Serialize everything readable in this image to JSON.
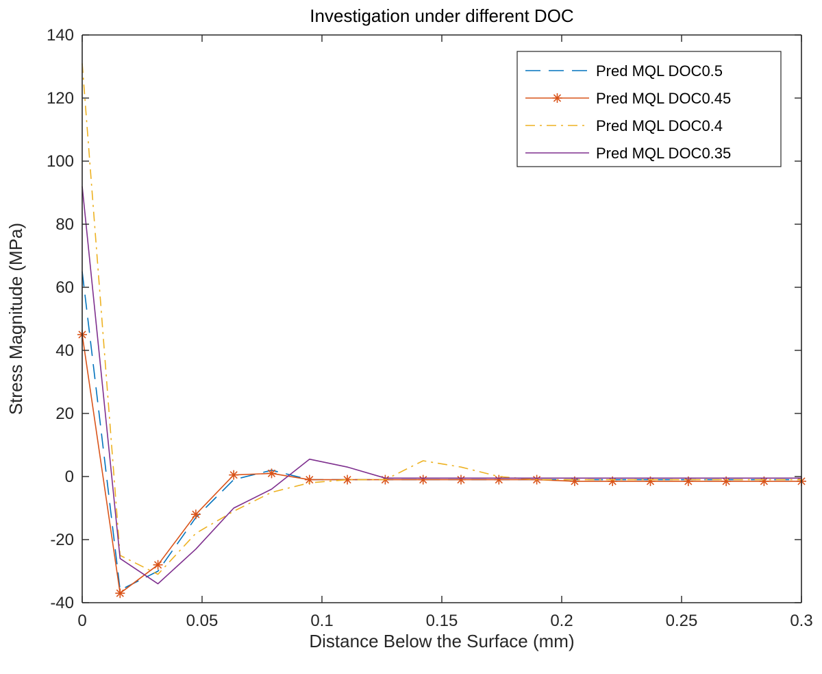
{
  "chart_data": {
    "type": "line",
    "title": "Investigation under different DOC",
    "xlabel": "Distance Below the Surface (mm)",
    "ylabel": "Stress Magnitude (MPa)",
    "xlim": [
      0,
      0.3
    ],
    "ylim": [
      -40,
      140
    ],
    "xticks": [
      0,
      0.05,
      0.1,
      0.15,
      0.2,
      0.25,
      0.3
    ],
    "xtick_labels": [
      "0",
      "0.05",
      "0.1",
      "0.15",
      "0.2",
      "0.25",
      "0.3"
    ],
    "yticks": [
      -40,
      -20,
      0,
      20,
      40,
      60,
      80,
      100,
      120,
      140
    ],
    "ytick_labels": [
      "-40",
      "-20",
      "0",
      "20",
      "40",
      "60",
      "80",
      "100",
      "120",
      "140"
    ],
    "grid": false,
    "legend": "top-right",
    "x": [
      0,
      0.0158,
      0.0316,
      0.0474,
      0.0632,
      0.079,
      0.0948,
      0.1106,
      0.1264,
      0.1422,
      0.158,
      0.1738,
      0.1896,
      0.2054,
      0.2212,
      0.237,
      0.2528,
      0.2686,
      0.2844,
      0.3
    ],
    "series": [
      {
        "name": "Pred MQL DOC0.5",
        "color": "#0072bd",
        "style": "dashed",
        "values": [
          65,
          -36,
          -30,
          -13,
          -1,
          2,
          -1,
          -1,
          -1,
          -1,
          -1,
          -1,
          -1,
          -1,
          -1,
          -1,
          -1,
          -1,
          -1,
          -1
        ]
      },
      {
        "name": "Pred MQL DOC0.45",
        "color": "#d95319",
        "style": "solid-star",
        "values": [
          45,
          -37,
          -28,
          -12,
          0.5,
          1,
          -1,
          -1,
          -1,
          -1,
          -1,
          -1,
          -1,
          -1.5,
          -1.5,
          -1.5,
          -1.5,
          -1.5,
          -1.5,
          -1.5
        ]
      },
      {
        "name": "Pred MQL DOC0.4",
        "color": "#edb120",
        "style": "dashdot",
        "values": [
          131,
          -25,
          -31,
          -18,
          -11,
          -5,
          -2,
          -1,
          -1,
          5,
          3,
          0,
          -1,
          -1,
          -1,
          -1,
          -1,
          -1,
          -1,
          -1
        ]
      },
      {
        "name": "Pred MQL DOC0.35",
        "color": "#7e2f8e",
        "style": "solid",
        "values": [
          92,
          -26,
          -34,
          -23,
          -10,
          -4,
          5.5,
          3,
          -0.5,
          -0.5,
          -0.5,
          -0.5,
          -0.5,
          -0.5,
          -0.5,
          -0.5,
          -0.5,
          -0.5,
          -0.5,
          -0.5
        ]
      }
    ]
  }
}
